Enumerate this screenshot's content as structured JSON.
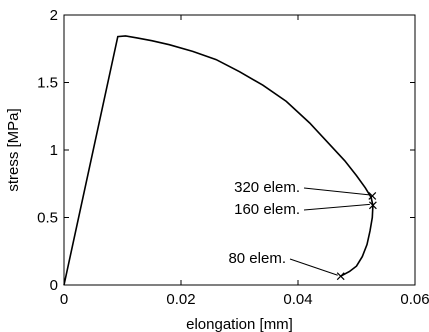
{
  "chart_data": {
    "type": "line",
    "xlabel": "elongation [mm]",
    "ylabel": "stress [MPa]",
    "xlim": [
      0,
      0.06
    ],
    "ylim": [
      0,
      2
    ],
    "x_ticks": [
      0,
      0.02,
      0.04,
      0.06
    ],
    "x_tick_labels": [
      "0",
      "0.02",
      "0.04",
      "0.06"
    ],
    "y_ticks": [
      0,
      0.5,
      1,
      1.5,
      2
    ],
    "y_tick_labels": [
      "0",
      "0.5",
      "1",
      "1.5",
      "2"
    ],
    "grid": false,
    "box": true,
    "series": [
      {
        "x": [
          0,
          0.0092,
          0.0105,
          0.0125,
          0.015,
          0.018,
          0.022,
          0.026,
          0.03,
          0.034,
          0.038,
          0.042,
          0.045,
          0.048,
          0.05,
          0.0515,
          0.0525,
          0.0528,
          0.0527,
          0.0523,
          0.0518,
          0.051,
          0.05,
          0.0488,
          0.0473
        ],
        "y": [
          0,
          1.84,
          1.845,
          1.83,
          1.81,
          1.78,
          1.73,
          1.67,
          1.58,
          1.48,
          1.36,
          1.2,
          1.06,
          0.92,
          0.81,
          0.72,
          0.65,
          0.59,
          0.5,
          0.4,
          0.3,
          0.21,
          0.14,
          0.1,
          0.065
        ]
      }
    ],
    "markers": [
      {
        "label": "320 elem.",
        "x": 0.0527,
        "y": 0.66
      },
      {
        "label": "160 elem.",
        "x": 0.0528,
        "y": 0.59
      },
      {
        "label": "80 elem.",
        "x": 0.0473,
        "y": 0.065
      }
    ]
  }
}
